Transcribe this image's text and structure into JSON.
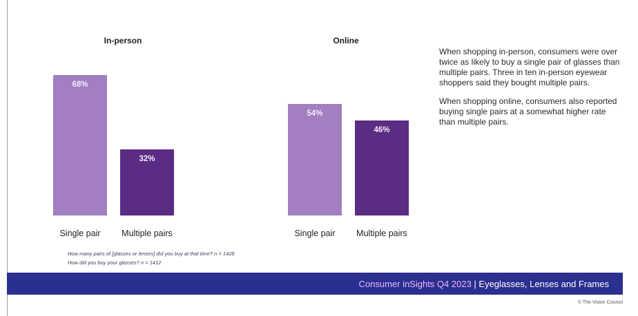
{
  "chart_data": [
    {
      "type": "bar",
      "title": "In-person",
      "categories": [
        "Single pair",
        "Multiple pairs"
      ],
      "values": [
        68,
        32
      ],
      "data_labels": [
        "68%",
        "32%"
      ],
      "colors": [
        "#a17fc0",
        "#5b2c83"
      ],
      "ylim": [
        0,
        72
      ],
      "grid": false
    },
    {
      "type": "bar",
      "title": "Online",
      "categories": [
        "Single pair",
        "Multiple pairs"
      ],
      "values": [
        54,
        46
      ],
      "data_labels": [
        "54%",
        "46%"
      ],
      "colors": [
        "#a17fc0",
        "#5b2c83"
      ],
      "ylim": [
        0,
        72
      ],
      "grid": false
    }
  ],
  "commentary": {
    "p1": "When shopping in-person, consumers were over twice as likely to buy a single pair of glasses than multiple pairs. Three in ten in-person eyewear shoppers said they bought multiple pairs.",
    "p2": "When shopping online, consumers also reported buying single pairs at a somewhat higher rate than multiple pairs."
  },
  "questions": {
    "q1": "How many pairs of [glasses or lenses] did you buy at that time? n = 1428",
    "q2": "How did you buy your glasses? n = 1412"
  },
  "banner": {
    "accent": "Consumer inSights Q4 2023",
    "main": " | Eyeglasses, Lenses and Frames",
    "color": "#2b2f8f"
  },
  "copyright": "© The Vision Council"
}
